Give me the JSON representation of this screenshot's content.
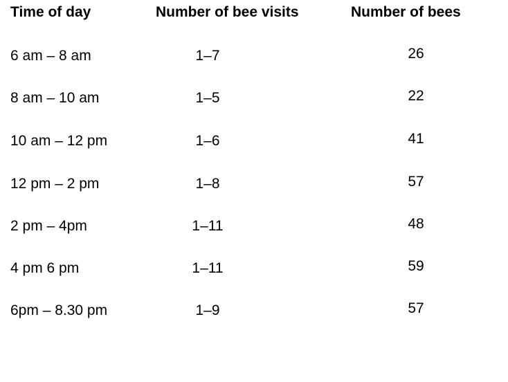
{
  "table": {
    "headers": {
      "time": "Time of day",
      "visits": "Number of bee visits",
      "bees": "Number of bees"
    },
    "rows": [
      {
        "time": "6 am – 8 am",
        "visits": "1–7",
        "bees": "26"
      },
      {
        "time": "8 am – 10 am",
        "visits": "1–5",
        "bees": "22"
      },
      {
        "time": "10 am – 12 pm",
        "visits": "1–6",
        "bees": "41"
      },
      {
        "time": "12 pm – 2 pm",
        "visits": "1–8",
        "bees": "57"
      },
      {
        "time": "2 pm – 4pm",
        "visits": "1–11",
        "bees": "48"
      },
      {
        "time": "4 pm 6 pm",
        "visits": "1–11",
        "bees": "59"
      },
      {
        "time": "6pm – 8.30 pm",
        "visits": "1–9",
        "bees": "57"
      }
    ]
  }
}
